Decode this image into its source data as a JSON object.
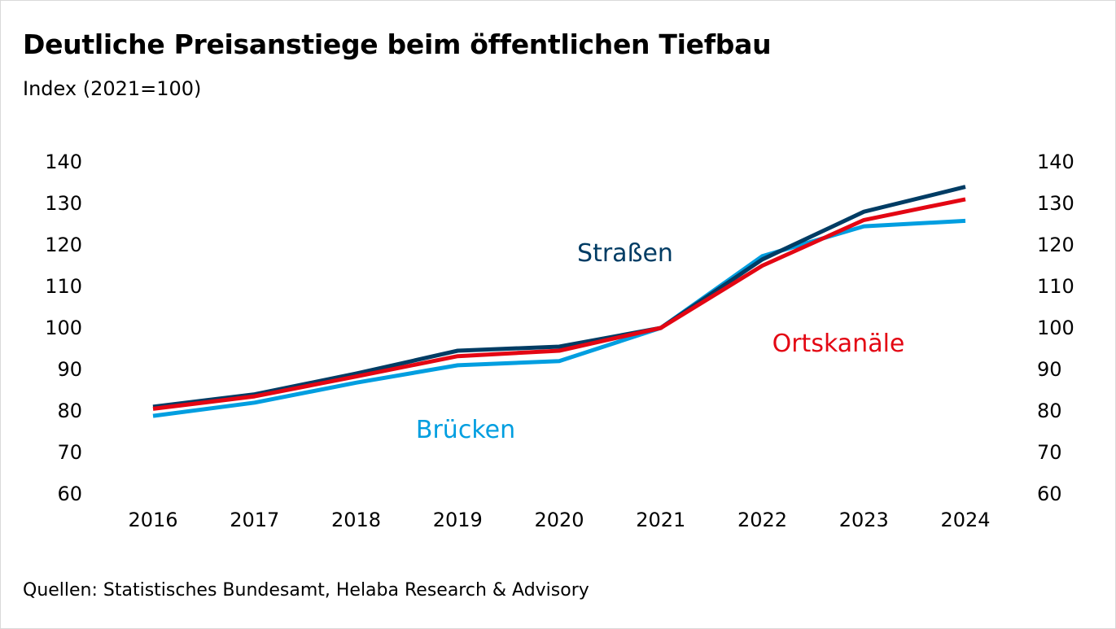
{
  "chart_data": {
    "type": "line",
    "title": "Deutliche Preisanstiege beim öffentlichen Tiefbau",
    "subtitle": "Index (2021=100)",
    "source": "Quellen: Statistisches Bundesamt, Helaba Research & Advisory",
    "categories": [
      "2016",
      "2017",
      "2018",
      "2019",
      "2020",
      "2021",
      "2022",
      "2023",
      "2024"
    ],
    "ylim": [
      60,
      140
    ],
    "yticks": [
      "60",
      "70",
      "80",
      "90",
      "100",
      "110",
      "120",
      "130",
      "140"
    ],
    "series": [
      {
        "name": "Straßen",
        "color": "#003c64",
        "values": [
          81.0,
          84.0,
          89.0,
          94.5,
          95.5,
          100.0,
          116.5,
          128.0,
          134.0
        ]
      },
      {
        "name": "Ortskanäle",
        "color": "#e30613",
        "values": [
          80.5,
          83.5,
          88.3,
          93.2,
          94.5,
          100.0,
          115.0,
          126.0,
          131.0
        ]
      },
      {
        "name": "Brücken",
        "color": "#009ee0",
        "values": [
          78.8,
          82.0,
          86.8,
          91.0,
          92.0,
          100.0,
          117.3,
          124.5,
          125.8
        ]
      }
    ],
    "legend": [
      {
        "label": "Straßen",
        "color": "#003c64",
        "position": "above lines near 2019-2020"
      },
      {
        "label": "Ortskanäle",
        "color": "#e30613",
        "position": "right of lines near 2022-2023"
      },
      {
        "label": "Brücken",
        "color": "#009ee0",
        "position": "below lines near 2018-2019"
      }
    ]
  }
}
